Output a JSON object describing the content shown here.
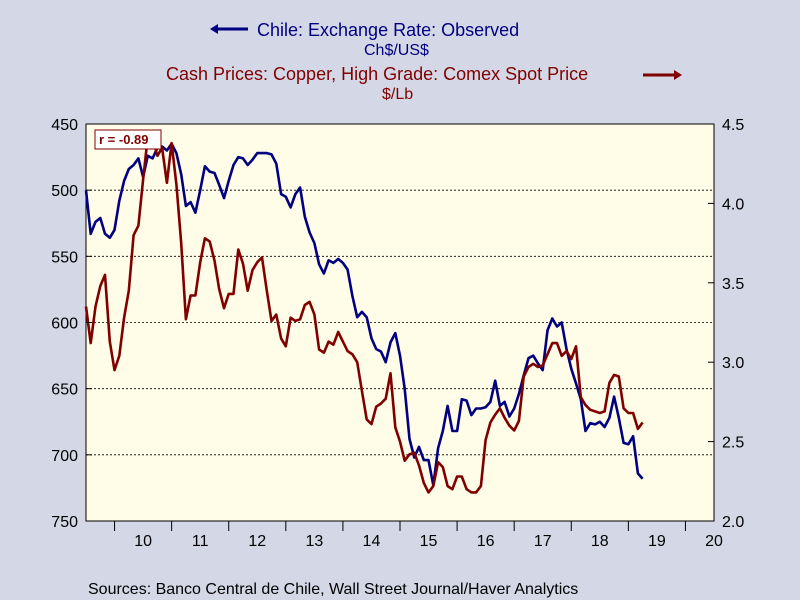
{
  "colors": {
    "background": "#D4D8E6",
    "plot_background": "#FFFCE8",
    "series1": "#000080",
    "series2": "#800000"
  },
  "legend": {
    "series1_label": "Chile: Exchange Rate: Observed",
    "series1_unit": "Ch$/US$",
    "series2_label": "Cash Prices: Copper, High Grade: Comex Spot Price",
    "series2_unit": "$/Lb"
  },
  "annotation": "r = -0.89",
  "source": "Sources:  Banco Central de Chile, Wall Street Journal/Haver Analytics",
  "chart_data": {
    "type": "line",
    "title": "",
    "xlabel": "",
    "x_ticks": [
      "10",
      "11",
      "12",
      "13",
      "14",
      "15",
      "16",
      "17",
      "18",
      "19",
      "20"
    ],
    "xlim": [
      2009.5,
      2020.5
    ],
    "grid": "horizontal dashed",
    "left_axis": {
      "label": "Ch$/US$",
      "inverted": true,
      "ylim": [
        450,
        750
      ],
      "ticks": [
        450,
        500,
        550,
        600,
        650,
        700,
        750
      ]
    },
    "right_axis": {
      "label": "$/Lb",
      "inverted": false,
      "ylim": [
        2.0,
        4.5
      ],
      "ticks": [
        "2.0",
        "2.5",
        "3.0",
        "3.5",
        "4.0",
        "4.5"
      ]
    },
    "series": [
      {
        "name": "Chile: Exchange Rate: Observed",
        "axis": "left",
        "x": [
          2009.5,
          2009.583,
          2009.667,
          2009.75,
          2009.833,
          2009.917,
          2010.0,
          2010.083,
          2010.167,
          2010.25,
          2010.333,
          2010.417,
          2010.5,
          2010.583,
          2010.667,
          2010.75,
          2010.833,
          2010.917,
          2011.0,
          2011.083,
          2011.167,
          2011.25,
          2011.333,
          2011.417,
          2011.5,
          2011.583,
          2011.667,
          2011.75,
          2011.833,
          2011.917,
          2012.0,
          2012.083,
          2012.167,
          2012.25,
          2012.333,
          2012.417,
          2012.5,
          2012.583,
          2012.667,
          2012.75,
          2012.833,
          2012.917,
          2013.0,
          2013.083,
          2013.167,
          2013.25,
          2013.333,
          2013.417,
          2013.5,
          2013.583,
          2013.667,
          2013.75,
          2013.833,
          2013.917,
          2014.0,
          2014.083,
          2014.167,
          2014.25,
          2014.333,
          2014.417,
          2014.5,
          2014.583,
          2014.667,
          2014.75,
          2014.833,
          2014.917,
          2015.0,
          2015.083,
          2015.167,
          2015.25,
          2015.333,
          2015.417,
          2015.5,
          2015.583,
          2015.667,
          2015.75,
          2015.833,
          2015.917,
          2016.0,
          2016.083,
          2016.167,
          2016.25,
          2016.333,
          2016.417,
          2016.5,
          2016.583,
          2016.667,
          2016.75,
          2016.833,
          2016.917,
          2017.0,
          2017.083,
          2017.167,
          2017.25,
          2017.333,
          2017.417,
          2017.5,
          2017.583,
          2017.667,
          2017.75,
          2017.833,
          2017.917,
          2018.0,
          2018.083,
          2018.167,
          2018.25,
          2018.333,
          2018.417,
          2018.5,
          2018.583,
          2018.667,
          2018.75,
          2018.833,
          2018.917,
          2019.0,
          2019.083,
          2019.167,
          2019.25
        ],
        "values": [
          500,
          533,
          524,
          521,
          533,
          536,
          530,
          508,
          493,
          484,
          481,
          476,
          490,
          474,
          476,
          468,
          467,
          470,
          465,
          472,
          488,
          512,
          509,
          517,
          500,
          482,
          486,
          487,
          496,
          506,
          493,
          481,
          475,
          476,
          481,
          477,
          472,
          472,
          472,
          473,
          480,
          503,
          505,
          513,
          503,
          498,
          520,
          532,
          540,
          556,
          563,
          553,
          555,
          552,
          555,
          560,
          580,
          596,
          592,
          596,
          612,
          620,
          622,
          630,
          615,
          608,
          625,
          650,
          688,
          702,
          694,
          704,
          704,
          723,
          695,
          682,
          663,
          682,
          682,
          658,
          659,
          670,
          665,
          665,
          664,
          660,
          644,
          663,
          660,
          671,
          665,
          654,
          640,
          627,
          625,
          631,
          636,
          606,
          597,
          603,
          600,
          620,
          635,
          646,
          658,
          682,
          676,
          677,
          675,
          679,
          672,
          656,
          672,
          691,
          692,
          686,
          714,
          718
        ]
      },
      {
        "name": "Cash Prices: Copper, High Grade: Comex Spot Price",
        "axis": "right",
        "x": [
          2009.5,
          2009.583,
          2009.667,
          2009.75,
          2009.833,
          2009.917,
          2010.0,
          2010.083,
          2010.167,
          2010.25,
          2010.333,
          2010.417,
          2010.5,
          2010.583,
          2010.667,
          2010.75,
          2010.833,
          2010.917,
          2011.0,
          2011.083,
          2011.167,
          2011.25,
          2011.333,
          2011.417,
          2011.5,
          2011.583,
          2011.667,
          2011.75,
          2011.833,
          2011.917,
          2012.0,
          2012.083,
          2012.167,
          2012.25,
          2012.333,
          2012.417,
          2012.5,
          2012.583,
          2012.667,
          2012.75,
          2012.833,
          2012.917,
          2013.0,
          2013.083,
          2013.167,
          2013.25,
          2013.333,
          2013.417,
          2013.5,
          2013.583,
          2013.667,
          2013.75,
          2013.833,
          2013.917,
          2014.0,
          2014.083,
          2014.167,
          2014.25,
          2014.333,
          2014.417,
          2014.5,
          2014.583,
          2014.667,
          2014.75,
          2014.833,
          2014.917,
          2015.0,
          2015.083,
          2015.167,
          2015.25,
          2015.333,
          2015.417,
          2015.5,
          2015.583,
          2015.667,
          2015.75,
          2015.833,
          2015.917,
          2016.0,
          2016.083,
          2016.167,
          2016.25,
          2016.333,
          2016.417,
          2016.5,
          2016.583,
          2016.667,
          2016.75,
          2016.833,
          2016.917,
          2017.0,
          2017.083,
          2017.167,
          2017.25,
          2017.333,
          2017.417,
          2017.5,
          2017.583,
          2017.667,
          2017.75,
          2017.833,
          2017.917,
          2018.0,
          2018.083,
          2018.167,
          2018.25,
          2018.333,
          2018.417,
          2018.5,
          2018.583,
          2018.667,
          2018.75,
          2018.833,
          2018.917,
          2019.0,
          2019.083,
          2019.167,
          2019.25
        ],
        "values": [
          3.35,
          3.12,
          3.35,
          3.48,
          3.55,
          3.13,
          2.95,
          3.04,
          3.28,
          3.45,
          3.8,
          3.86,
          4.15,
          4.42,
          4.41,
          4.3,
          4.35,
          4.13,
          4.38,
          4.12,
          3.75,
          3.27,
          3.42,
          3.42,
          3.63,
          3.78,
          3.76,
          3.64,
          3.46,
          3.34,
          3.43,
          3.43,
          3.71,
          3.62,
          3.45,
          3.58,
          3.63,
          3.66,
          3.45,
          3.26,
          3.3,
          3.15,
          3.1,
          3.28,
          3.26,
          3.27,
          3.36,
          3.38,
          3.3,
          3.08,
          3.06,
          3.13,
          3.11,
          3.19,
          3.13,
          3.07,
          3.05,
          3.0,
          2.82,
          2.64,
          2.61,
          2.72,
          2.74,
          2.77,
          2.93,
          2.59,
          2.5,
          2.38,
          2.42,
          2.43,
          2.35,
          2.24,
          2.18,
          2.22,
          2.37,
          2.34,
          2.22,
          2.2,
          2.28,
          2.28,
          2.2,
          2.18,
          2.18,
          2.22,
          2.51,
          2.62,
          2.67,
          2.71,
          2.65,
          2.6,
          2.57,
          2.63,
          2.91,
          2.97,
          2.99,
          2.97,
          2.98,
          3.05,
          3.12,
          3.12,
          3.04,
          3.07,
          3.02,
          3.1,
          2.78,
          2.73,
          2.7,
          2.69,
          2.68,
          2.69,
          2.87,
          2.92,
          2.91,
          2.71,
          2.68,
          2.68,
          2.58,
          2.62
        ]
      }
    ]
  }
}
